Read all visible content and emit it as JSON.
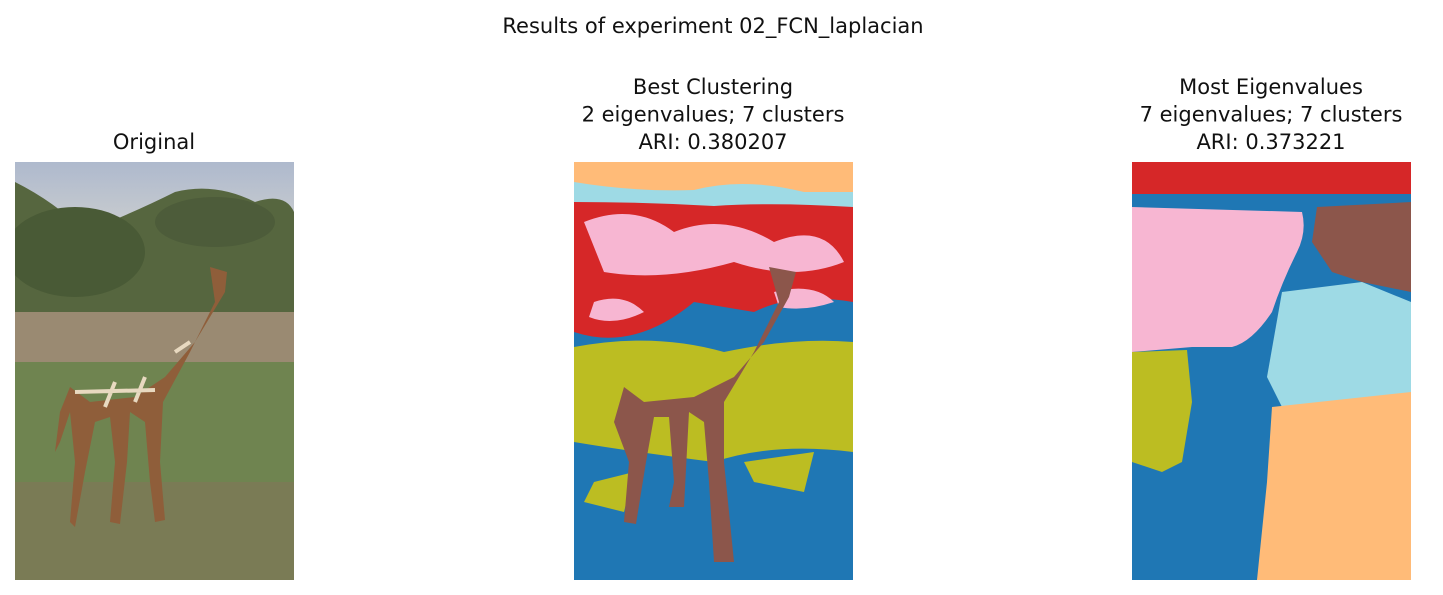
{
  "figure": {
    "title": "Results of experiment 02_FCN_laplacian",
    "panels": [
      {
        "title": [
          "Original"
        ]
      },
      {
        "title": [
          "Best Clustering",
          "2 eigenvalues; 7 clusters",
          "ARI: 0.380207"
        ]
      },
      {
        "title": [
          "Most Eigenvalues",
          "7 eigenvalues; 7 clusters",
          "ARI: 0.373221"
        ]
      }
    ]
  }
}
